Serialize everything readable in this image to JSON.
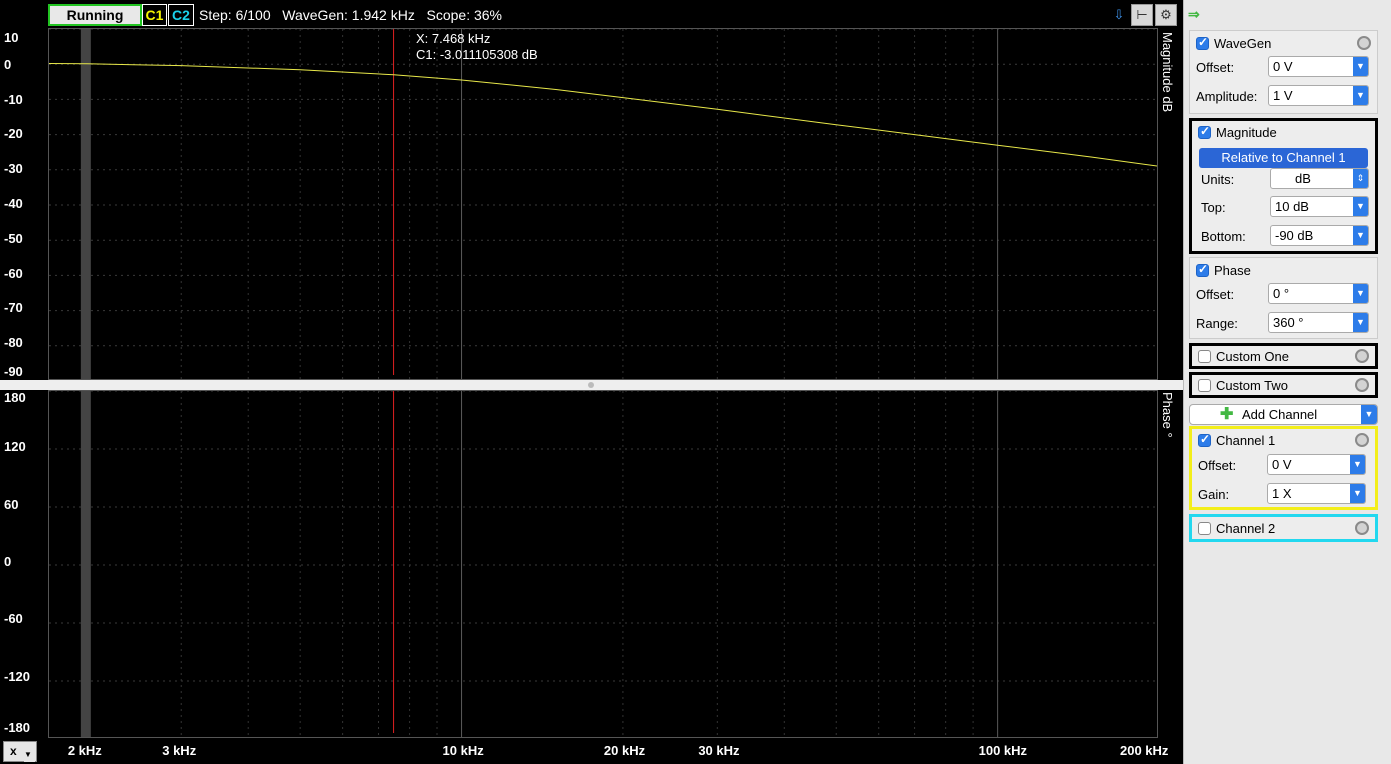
{
  "status": {
    "state": "Running",
    "c1": "C1",
    "c2": "C2",
    "info": "Step: 6/100   WaveGen: 1.942 kHz   Scope: 36%"
  },
  "cursor": {
    "x_readout": "X: 7.468 kHz",
    "c1_readout": "C1: -3.011105308 dB",
    "x_khz": 7.468
  },
  "mag_axis": {
    "title": "Magnitude dB",
    "ticks": [
      "10",
      "0",
      "-10",
      "-20",
      "-30",
      "-40",
      "-50",
      "-60",
      "-70",
      "-80",
      "-90"
    ],
    "range": [
      -90,
      10
    ]
  },
  "phase_axis": {
    "title": "Phase °",
    "ticks": [
      "180",
      "120",
      "60",
      "0",
      "-60",
      "-120",
      "-180"
    ],
    "range": [
      -180,
      180
    ]
  },
  "x_axis": {
    "scale": "log",
    "range_khz": [
      1.7,
      200
    ],
    "ticks": [
      {
        "v": 2,
        "label": "2 kHz"
      },
      {
        "v": 3,
        "label": "3 kHz"
      },
      {
        "v": 10,
        "label": "10 kHz"
      },
      {
        "v": 20,
        "label": "20 kHz"
      },
      {
        "v": 30,
        "label": "30 kHz"
      },
      {
        "v": 100,
        "label": "100 kHz"
      },
      {
        "v": 200,
        "label": "200 kHz"
      }
    ],
    "selector": "x"
  },
  "magnitude_trace": {
    "color": "#e8e84a",
    "x_khz": [
      1.7,
      2,
      3,
      5,
      7.468,
      10,
      15,
      20,
      30,
      50,
      70,
      100,
      150,
      200
    ],
    "db": [
      0.2,
      0.1,
      -0.4,
      -1.6,
      -3.0,
      -4.5,
      -7.2,
      -9.5,
      -12.8,
      -17.2,
      -20.0,
      -23.0,
      -26.4,
      -29.0
    ]
  },
  "panel": {
    "wavegen": {
      "title": "WaveGen",
      "offset_label": "Offset:",
      "offset": "0 V",
      "amp_label": "Amplitude:",
      "amp": "1 V"
    },
    "magnitude": {
      "title": "Magnitude",
      "relative": "Relative to Channel 1",
      "units_label": "Units:",
      "units": "dB",
      "top_label": "Top:",
      "top": "10 dB",
      "bottom_label": "Bottom:",
      "bottom": "-90 dB"
    },
    "phase": {
      "title": "Phase",
      "offset_label": "Offset:",
      "offset": "0 °",
      "range_label": "Range:",
      "range": "360 °"
    },
    "custom_one": "Custom One",
    "custom_two": "Custom Two",
    "add_channel": "Add Channel",
    "channel1": {
      "title": "Channel 1",
      "offset_label": "Offset:",
      "offset": "0 V",
      "gain_label": "Gain:",
      "gain": "1 X"
    },
    "channel2": "Channel 2"
  },
  "colors": {
    "cursor": "#e02020",
    "ch1": "#f3ee1a",
    "ch2": "#22d8ef",
    "run": "#22c422"
  }
}
